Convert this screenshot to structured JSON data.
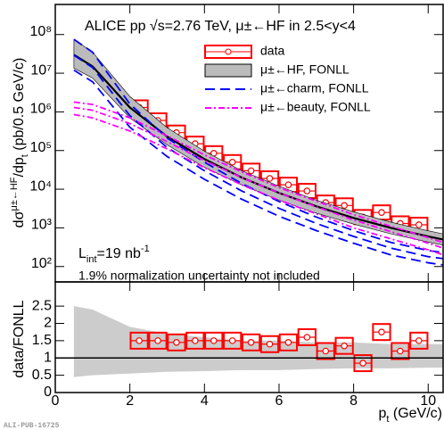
{
  "chart_data": [
    {
      "type": "line",
      "title": "ALICE pp √s=2.76 TeV, μ±←HF in 2.5<y<4",
      "y_label": [
        "dσ",
        "μ±←HF",
        "/dp",
        "t",
        " (pb/0.5 GeV/c)"
      ],
      "lumi": [
        "L",
        "int",
        "=19 nb",
        "-1"
      ],
      "note": "1.9% normalization uncertainty not included",
      "log_y": true,
      "xlim": [
        0,
        10.4
      ],
      "ylim": [
        40,
        600000000
      ],
      "yticks": [
        {
          "value": 100,
          "label": "10²"
        },
        {
          "value": 1000,
          "label": "10³"
        },
        {
          "value": 10000,
          "label": "10⁴"
        },
        {
          "value": 100000,
          "label": "10⁵"
        },
        {
          "value": 1000000,
          "label": "10⁶"
        },
        {
          "value": 10000000,
          "label": "10⁷"
        },
        {
          "value": 100000000,
          "label": "10⁸"
        }
      ],
      "series": [
        {
          "name": "data",
          "color": "#ff0000",
          "style": "points",
          "x": [
            2.25,
            2.75,
            3.25,
            3.75,
            4.25,
            4.75,
            5.25,
            5.75,
            6.25,
            6.75,
            7.25,
            7.75,
            8.25,
            8.75,
            9.25,
            9.75
          ],
          "values": [
            1300000,
            600000,
            290000,
            150000,
            85000,
            50000,
            30000,
            19000,
            13000,
            9000,
            4500,
            3800,
            1900,
            2500,
            1300,
            1200
          ]
        },
        {
          "name": "μ±←HF, FONLL",
          "color": "#000000",
          "fill": "#bbbbbb",
          "style": "band",
          "x": [
            0.5,
            1,
            2,
            3,
            4,
            5,
            6,
            7,
            8,
            9,
            10,
            10.4
          ],
          "values": [
            30000000,
            15000000,
            1300000,
            230000,
            60000,
            20000,
            8000,
            3600,
            1800,
            1000,
            600,
            500
          ],
          "upper": [
            75000000,
            35000000,
            2500000,
            390000,
            96000,
            30000,
            12000,
            5200,
            2600,
            1400,
            840,
            700
          ],
          "lower": [
            13500000,
            7500000,
            700000,
            140000,
            37000,
            13000,
            5200,
            2400,
            1250,
            700,
            430,
            360
          ]
        },
        {
          "name": "μ±←charm, FONLL",
          "color": "#0000ff",
          "style": "dashed",
          "x": [
            0.5,
            1,
            2,
            3,
            4,
            5,
            6,
            7,
            8,
            9,
            10,
            10.4
          ],
          "values": [
            29000000,
            14000000,
            800000,
            120000,
            30000,
            9000,
            3200,
            1300,
            600,
            300,
            180,
            160
          ],
          "upper": [
            75000000,
            35000000,
            1600000,
            210000,
            50000,
            14000,
            4800,
            1900,
            850,
            420,
            260,
            230
          ],
          "lower": [
            12000000,
            6000000,
            400000,
            70000,
            18000,
            5500,
            2000,
            850,
            400,
            200,
            125,
            110
          ]
        },
        {
          "name": "μ±←beauty, FONLL",
          "color": "#ff00ff",
          "style": "dashdot",
          "x": [
            0.5,
            1,
            2,
            3,
            4,
            5,
            6,
            7,
            8,
            9,
            10,
            10.4
          ],
          "values": [
            1300000,
            1100000,
            500000,
            170000,
            55000,
            20000,
            8000,
            3500,
            1600,
            800,
            400,
            300
          ],
          "upper": [
            1800000,
            1550000,
            700000,
            240000,
            77000,
            28000,
            11000,
            4900,
            2200,
            1100,
            560,
            420
          ],
          "lower": [
            850000,
            700000,
            320000,
            110000,
            36000,
            13000,
            5200,
            2300,
            1000,
            520,
            270,
            200
          ]
        }
      ]
    },
    {
      "type": "line",
      "y_label": "data/FONLL",
      "x_label": [
        "p",
        "t",
        " (GeV/c)"
      ],
      "xlim": [
        0,
        10.4
      ],
      "xticks": [
        0,
        2,
        4,
        6,
        8,
        10
      ],
      "ylim": [
        0,
        3.2
      ],
      "yticks": [
        0,
        0.5,
        1,
        1.5,
        2,
        2.5
      ],
      "reference_line": 1,
      "series": [
        {
          "color": "#cccccc",
          "fill": "#cccccc",
          "style": "band",
          "x": [
            0.5,
            1,
            2,
            3,
            4,
            5,
            6,
            7,
            8,
            9,
            10,
            10.4
          ],
          "upper": [
            2.5,
            2.4,
            1.9,
            1.7,
            1.6,
            1.5,
            1.5,
            1.45,
            1.45,
            1.4,
            1.4,
            1.4
          ],
          "lower": [
            0.45,
            0.5,
            0.55,
            0.6,
            0.62,
            0.65,
            0.65,
            0.68,
            0.7,
            0.7,
            0.72,
            0.72
          ]
        },
        {
          "color": "#ff0000",
          "style": "points",
          "x": [
            2.25,
            2.75,
            3.25,
            3.75,
            4.25,
            4.75,
            5.25,
            5.75,
            6.25,
            6.75,
            7.25,
            7.75,
            8.25,
            8.75,
            9.25,
            9.75
          ],
          "values": [
            1.5,
            1.5,
            1.45,
            1.5,
            1.5,
            1.5,
            1.45,
            1.4,
            1.45,
            1.6,
            1.2,
            1.35,
            0.85,
            1.75,
            1.2,
            1.5
          ]
        }
      ]
    }
  ],
  "footer": "ALI-PUB-16725"
}
